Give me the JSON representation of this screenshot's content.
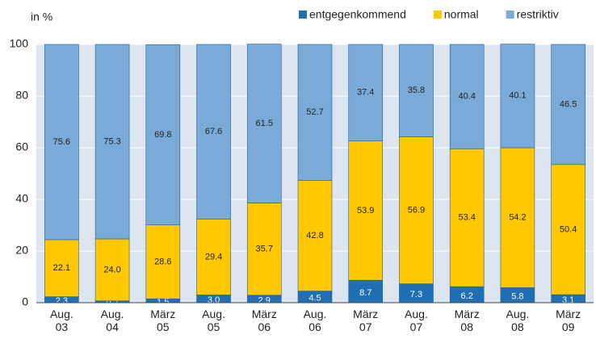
{
  "chart_data": {
    "type": "stacked-bar",
    "y_label": "in %",
    "categories": [
      "Aug.\n03",
      "Aug.\n04",
      "März\n05",
      "Aug.\n05",
      "März\n06",
      "Aug.\n06",
      "März\n07",
      "Aug.\n07",
      "März\n08",
      "Aug.\n08",
      "März\n09"
    ],
    "series": [
      {
        "name": "entgegenkommend",
        "color": "#1f6fb2",
        "label_color": "#ffffff",
        "values": [
          2.3,
          0.7,
          1.5,
          3.0,
          2.9,
          4.5,
          8.7,
          7.3,
          6.2,
          5.8,
          3.1
        ],
        "value_labels": [
          "2.3",
          "0.7",
          "1.5",
          "3.0",
          "2.9",
          "4.5",
          "8.7",
          "7.3",
          "6.2",
          "5.8",
          "3.1"
        ]
      },
      {
        "name": "normal",
        "color": "#ffc800",
        "label_color": "#222222",
        "values": [
          22.1,
          24.0,
          28.6,
          29.4,
          35.7,
          42.8,
          53.9,
          56.9,
          53.4,
          54.2,
          50.4
        ],
        "value_labels": [
          "22.1",
          "24.0",
          "28.6",
          "29.4",
          "35.7",
          "42.8",
          "53.9",
          "56.9",
          "53.4",
          "54.2",
          "50.4"
        ]
      },
      {
        "name": "restriktiv",
        "color": "#7aaad8",
        "label_color": "#222222",
        "values": [
          75.6,
          75.3,
          69.8,
          67.6,
          61.5,
          52.7,
          37.4,
          35.8,
          40.4,
          40.1,
          46.5
        ],
        "value_labels": [
          "75.6",
          "75.3",
          "69.8",
          "67.6",
          "61.5",
          "52.7",
          "37.4",
          "35.8",
          "40.4",
          "40.1",
          "46.5"
        ]
      }
    ],
    "ylim": [
      0,
      100
    ],
    "yticks": [
      0,
      20,
      40,
      60,
      80,
      100
    ],
    "grid": true
  }
}
